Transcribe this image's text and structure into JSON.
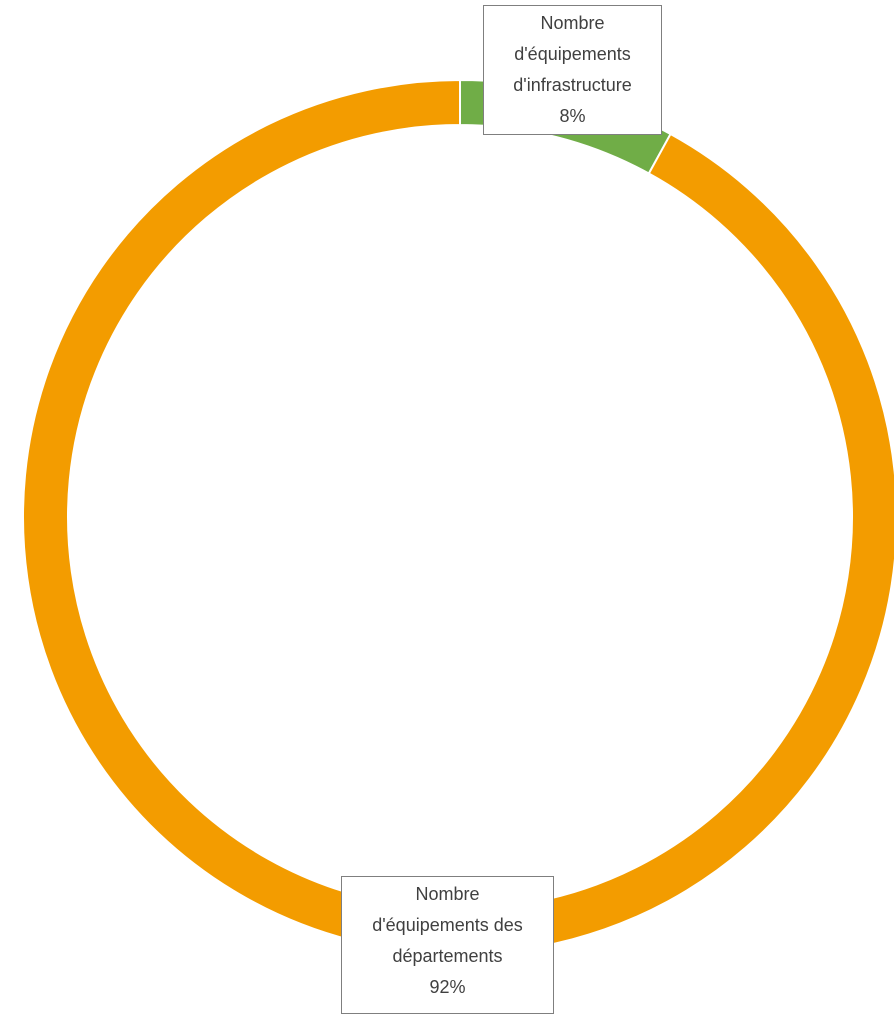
{
  "chart_data": {
    "type": "donut",
    "categories": [
      "Nombre d'équipements d'infrastructure",
      "Nombre d'équipements des départements"
    ],
    "values": [
      8,
      92
    ],
    "value_labels": [
      "8%",
      "92%"
    ],
    "colors": [
      "#70ad47",
      "#f39c00"
    ]
  }
}
